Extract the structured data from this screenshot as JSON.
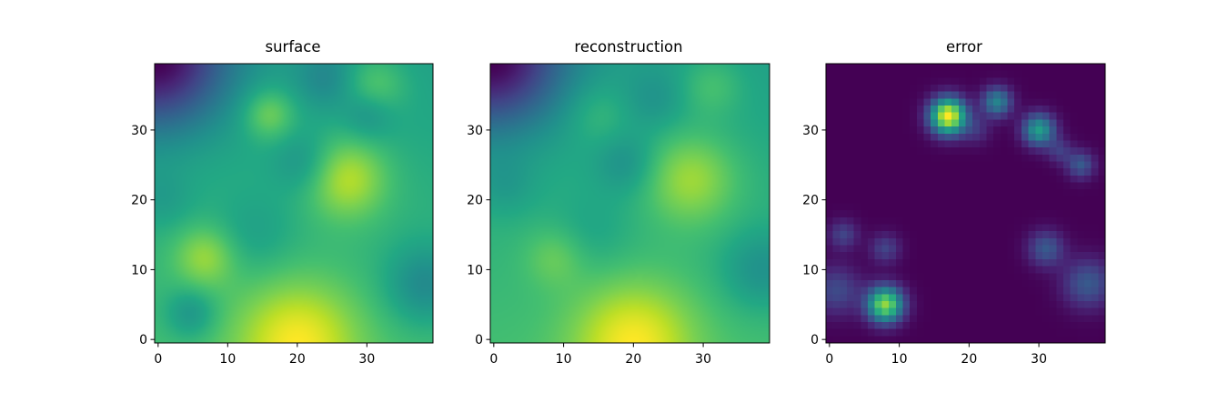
{
  "chart_data": [
    {
      "type": "heatmap",
      "title": "surface",
      "colormap": "viridis",
      "grid_size": [
        40,
        40
      ],
      "origin": "lower",
      "xlim": [
        -0.5,
        39.5
      ],
      "ylim": [
        -0.5,
        39.5
      ],
      "xticks": [
        0,
        10,
        20,
        30
      ],
      "yticks": [
        0,
        10,
        20,
        30
      ],
      "xtick_labels": [
        "0",
        "10",
        "20",
        "30"
      ],
      "ytick_labels": [
        "0",
        "10",
        "20",
        "30"
      ],
      "smooth": true,
      "field": {
        "base": 0.6,
        "slope_x": 0.0,
        "slope_y": -0.004,
        "blobs": [
          {
            "x": 0,
            "y": 40,
            "a": -0.75,
            "s": 7
          },
          {
            "x": 20,
            "y": 0,
            "a": 0.4,
            "s": 6
          },
          {
            "x": 27,
            "y": 23,
            "a": 0.35,
            "s": 4
          },
          {
            "x": 7,
            "y": 12,
            "a": 0.25,
            "s": 3
          },
          {
            "x": 16,
            "y": 32,
            "a": 0.25,
            "s": 2.5
          },
          {
            "x": 31,
            "y": 36,
            "a": 0.2,
            "s": 3
          },
          {
            "x": 24,
            "y": 37,
            "a": -0.15,
            "s": 3
          },
          {
            "x": 21,
            "y": 25,
            "a": -0.15,
            "s": 3
          },
          {
            "x": 38,
            "y": 8,
            "a": -0.25,
            "s": 4
          },
          {
            "x": 5,
            "y": 4,
            "a": -0.2,
            "s": 2.5
          },
          {
            "x": 1,
            "y": 20,
            "a": -0.1,
            "s": 3
          },
          {
            "x": 14,
            "y": 15,
            "a": -0.1,
            "s": 4
          },
          {
            "x": 30,
            "y": 32,
            "a": -0.15,
            "s": 2.5
          }
        ]
      }
    },
    {
      "type": "heatmap",
      "title": "reconstruction",
      "colormap": "viridis",
      "grid_size": [
        40,
        40
      ],
      "origin": "lower",
      "xlim": [
        -0.5,
        39.5
      ],
      "ylim": [
        -0.5,
        39.5
      ],
      "xticks": [
        0,
        10,
        20,
        30
      ],
      "yticks": [
        0,
        10,
        20,
        30
      ],
      "xtick_labels": [
        "0",
        "10",
        "20",
        "30"
      ],
      "ytick_labels": [
        "0",
        "10",
        "20",
        "30"
      ],
      "smooth": true,
      "field": {
        "base": 0.6,
        "slope_x": 0.0,
        "slope_y": -0.004,
        "blobs": [
          {
            "x": 0,
            "y": 40,
            "a": -0.75,
            "s": 7
          },
          {
            "x": 20,
            "y": 0,
            "a": 0.4,
            "s": 6
          },
          {
            "x": 28,
            "y": 23,
            "a": 0.3,
            "s": 4.5
          },
          {
            "x": 9,
            "y": 12,
            "a": 0.15,
            "s": 3
          },
          {
            "x": 15,
            "y": 32,
            "a": 0.1,
            "s": 3
          },
          {
            "x": 31,
            "y": 36,
            "a": 0.15,
            "s": 3
          },
          {
            "x": 23,
            "y": 34,
            "a": -0.1,
            "s": 3
          },
          {
            "x": 19,
            "y": 25,
            "a": -0.15,
            "s": 3
          },
          {
            "x": 38,
            "y": 10,
            "a": -0.2,
            "s": 4
          },
          {
            "x": 14,
            "y": 15,
            "a": -0.08,
            "s": 4
          },
          {
            "x": 2,
            "y": 22,
            "a": -0.1,
            "s": 3
          }
        ]
      }
    },
    {
      "type": "heatmap",
      "title": "error",
      "colormap": "viridis",
      "grid_size": [
        40,
        40
      ],
      "origin": "lower",
      "xlim": [
        -0.5,
        39.5
      ],
      "ylim": [
        -0.5,
        39.5
      ],
      "xticks": [
        0,
        10,
        20,
        30
      ],
      "yticks": [
        0,
        10,
        20,
        30
      ],
      "xtick_labels": [
        "0",
        "10",
        "20",
        "30"
      ],
      "ytick_labels": [
        "0",
        "10",
        "20",
        "30"
      ],
      "smooth": false,
      "field": {
        "base": 0.05,
        "slope_x": 0.0,
        "slope_y": 0.0,
        "blobs": [
          {
            "x": 17,
            "y": 32,
            "a": 0.9,
            "s": 1.8
          },
          {
            "x": 8,
            "y": 5,
            "a": 0.75,
            "s": 1.8
          },
          {
            "x": 30,
            "y": 30,
            "a": 0.5,
            "s": 1.6
          },
          {
            "x": 24,
            "y": 34,
            "a": 0.4,
            "s": 1.5
          },
          {
            "x": 36,
            "y": 25,
            "a": 0.25,
            "s": 1.4
          },
          {
            "x": 31,
            "y": 13,
            "a": 0.25,
            "s": 1.8
          },
          {
            "x": 37,
            "y": 8,
            "a": 0.25,
            "s": 2.5
          },
          {
            "x": 8,
            "y": 13,
            "a": 0.18,
            "s": 1.5
          },
          {
            "x": 2,
            "y": 15,
            "a": 0.18,
            "s": 1.5
          },
          {
            "x": 1,
            "y": 7,
            "a": 0.2,
            "s": 2.5
          },
          {
            "x": 21,
            "y": 30,
            "a": 0.12,
            "s": 1.5
          },
          {
            "x": 33,
            "y": 27,
            "a": 0.15,
            "s": 1.3
          }
        ]
      }
    }
  ]
}
